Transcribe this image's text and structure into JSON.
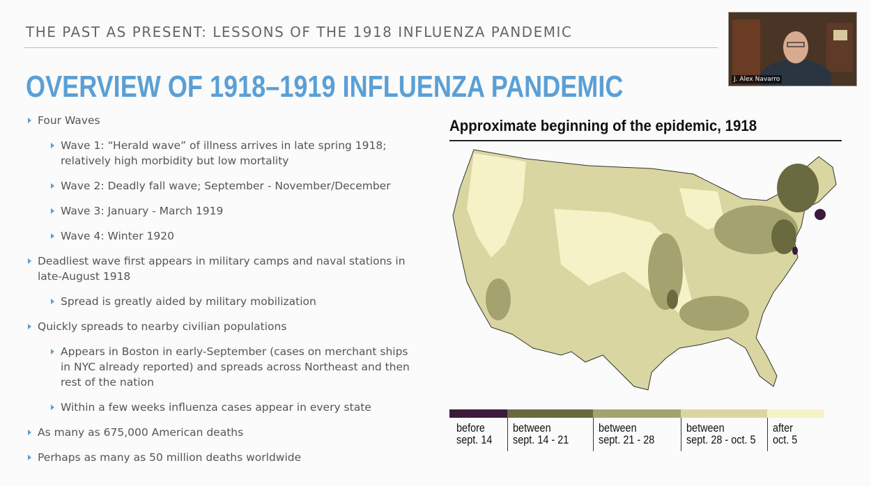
{
  "header": {
    "title": "THE PAST AS PRESENT: LESSONS OF THE 1918 INFLUENZA PANDEMIC"
  },
  "slide": {
    "title": "OVERVIEW OF 1918–1919 INFLUENZA PANDEMIC",
    "bullets": [
      {
        "text": "Four Waves",
        "sub": [
          "Wave 1: “Herald wave” of illness arrives in late spring 1918; relatively high morbidity but low mortality",
          "Wave 2: Deadly fall wave; September - November/December",
          "Wave 3: January - March 1919",
          "Wave 4: Winter 1920"
        ]
      },
      {
        "text": "Deadliest wave first appears in military camps and naval stations in late-August 1918",
        "sub": [
          "Spread is greatly aided by military mobilization"
        ]
      },
      {
        "text": "Quickly spreads to nearby civilian populations",
        "sub": [
          "Appears in Boston in early-September (cases on merchant ships in NYC already reported) and spreads across Northeast and then rest of the nation",
          "Within a few weeks influenza cases appear in every state"
        ]
      },
      {
        "text": "As many as 675,000 American deaths",
        "sub": []
      },
      {
        "text": "Perhaps as many as 50 million deaths worldwide",
        "sub": []
      }
    ]
  },
  "map": {
    "title": "Approximate beginning of the epidemic, 1918",
    "legend": [
      {
        "lines": [
          "before",
          "sept. 14"
        ],
        "color": "#3b1a3b"
      },
      {
        "lines": [
          "between",
          "sept. 14 - 21"
        ],
        "color": "#6a6a40"
      },
      {
        "lines": [
          "between",
          "sept. 21 - 28"
        ],
        "color": "#a4a26f"
      },
      {
        "lines": [
          "between",
          "sept. 28  - oct. 5"
        ],
        "color": "#d9d6a1"
      },
      {
        "lines": [
          "after",
          "oct. 5"
        ],
        "color": "#f6f2c8"
      }
    ]
  },
  "webcam": {
    "name": "J. Alex Navarro"
  }
}
